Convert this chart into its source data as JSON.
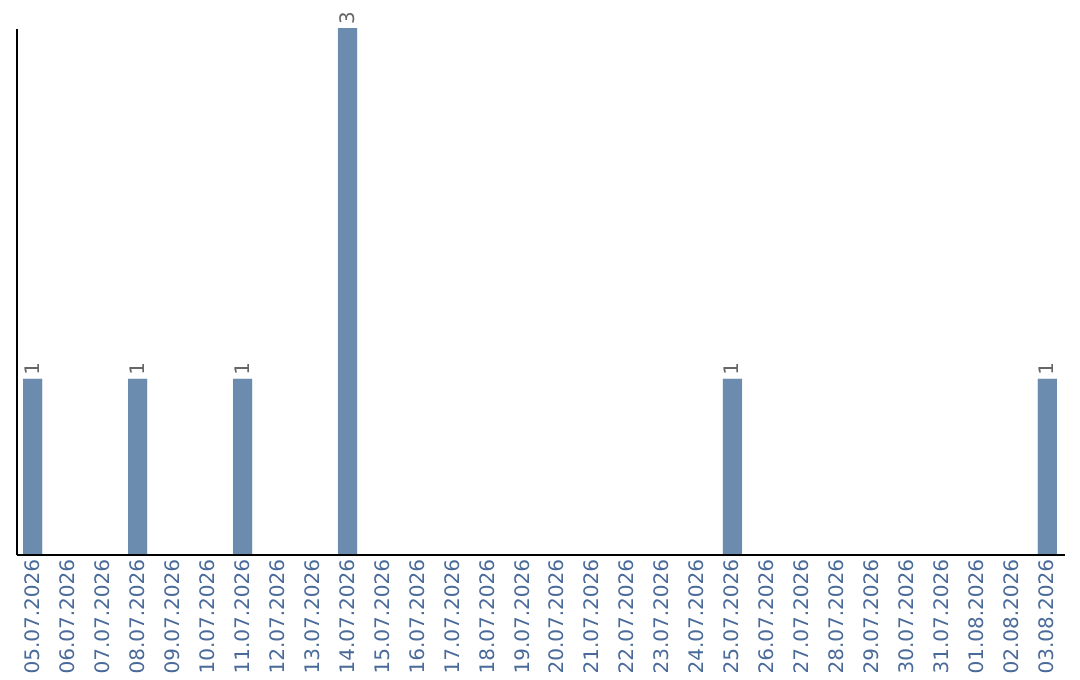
{
  "chart_data": {
    "type": "bar",
    "categories": [
      "05.07.2026",
      "06.07.2026",
      "07.07.2026",
      "08.07.2026",
      "09.07.2026",
      "10.07.2026",
      "11.07.2026",
      "12.07.2026",
      "13.07.2026",
      "14.07.2026",
      "15.07.2026",
      "16.07.2026",
      "17.07.2026",
      "18.07.2026",
      "19.07.2026",
      "20.07.2026",
      "21.07.2026",
      "22.07.2026",
      "23.07.2026",
      "24.07.2026",
      "25.07.2026",
      "26.07.2026",
      "27.07.2026",
      "28.07.2026",
      "29.07.2026",
      "30.07.2026",
      "31.07.2026",
      "01.08.2026",
      "02.08.2026",
      "03.08.2026"
    ],
    "values": [
      1,
      0,
      0,
      1,
      0,
      0,
      1,
      0,
      0,
      3,
      0,
      0,
      0,
      0,
      0,
      0,
      0,
      0,
      0,
      0,
      1,
      0,
      0,
      0,
      0,
      0,
      0,
      0,
      0,
      1
    ],
    "value_labels": [
      "1",
      null,
      null,
      "1",
      null,
      null,
      "1",
      null,
      null,
      "3",
      null,
      null,
      null,
      null,
      null,
      null,
      null,
      null,
      null,
      null,
      "1",
      null,
      null,
      null,
      null,
      null,
      null,
      null,
      null,
      "1"
    ],
    "color": "#6b8cae",
    "tick_labels": "x",
    "grid": false
  }
}
